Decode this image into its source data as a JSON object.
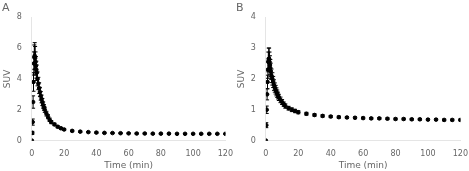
{
  "chart_data": [
    {
      "type": "scatter",
      "title": "A",
      "xlabel": "Time (min)",
      "ylabel": "SUV",
      "x": [
        0,
        0.25,
        0.5,
        0.75,
        1,
        1.25,
        1.5,
        1.75,
        2,
        2.25,
        2.5,
        2.75,
        3,
        3.5,
        4,
        4.5,
        5,
        5.5,
        6,
        6.5,
        7,
        7.5,
        8,
        9,
        10,
        11,
        12,
        14,
        16,
        18,
        20,
        25,
        30,
        35,
        40,
        45,
        50,
        55,
        60,
        65,
        70,
        75,
        80,
        85,
        90,
        95,
        100,
        105,
        110,
        115,
        120
      ],
      "values": [
        0,
        0.5,
        1.2,
        2.5,
        3.8,
        5.0,
        5.4,
        5.5,
        5.35,
        5.1,
        4.85,
        4.6,
        4.4,
        4.0,
        3.7,
        3.4,
        3.15,
        2.9,
        2.7,
        2.5,
        2.3,
        2.15,
        2.0,
        1.75,
        1.55,
        1.35,
        1.2,
        1.05,
        0.9,
        0.8,
        0.72,
        0.63,
        0.58,
        0.55,
        0.52,
        0.5,
        0.49,
        0.48,
        0.47,
        0.46,
        0.46,
        0.45,
        0.45,
        0.45,
        0.44,
        0.44,
        0.44,
        0.44,
        0.44,
        0.44,
        0.44
      ],
      "err": [
        0,
        0.1,
        0.2,
        0.4,
        0.6,
        0.75,
        0.8,
        0.85,
        0.75,
        0.65,
        0.6,
        0.55,
        0.5,
        0.45,
        0.4,
        0.35,
        0.3,
        0.28,
        0.25,
        0.23,
        0.2,
        0.18,
        0.17,
        0.15,
        0.13,
        0.11,
        0.1,
        0.08,
        0.07,
        0.06,
        0.055,
        0.05,
        0.045,
        0.04,
        0.04,
        0.035,
        0.03,
        0.03,
        0.03,
        0.03,
        0.03,
        0.03,
        0.03,
        0.03,
        0.03,
        0.03,
        0.03,
        0.03,
        0.03,
        0.03,
        0.03
      ],
      "xlim": [
        0,
        120
      ],
      "xticks": [
        0,
        20,
        40,
        60,
        80,
        100,
        120
      ],
      "ylim": [
        0,
        8
      ],
      "yticks": [
        0,
        2,
        4,
        6,
        8
      ],
      "color": "#000000",
      "marker": "o",
      "grid": false
    },
    {
      "type": "scatter",
      "title": "B",
      "xlabel": "Time (min)",
      "ylabel": "SUV",
      "x": [
        0,
        0.25,
        0.5,
        0.75,
        1,
        1.25,
        1.5,
        1.75,
        2,
        2.25,
        2.5,
        2.75,
        3,
        3.5,
        4,
        4.5,
        5,
        5.5,
        6,
        6.5,
        7,
        7.5,
        8,
        9,
        10,
        11,
        12,
        14,
        16,
        18,
        20,
        25,
        30,
        35,
        40,
        45,
        50,
        55,
        60,
        65,
        70,
        75,
        80,
        85,
        90,
        95,
        100,
        105,
        110,
        115,
        120
      ],
      "values": [
        0,
        0.5,
        1.0,
        1.5,
        1.9,
        2.3,
        2.55,
        2.65,
        2.65,
        2.55,
        2.45,
        2.35,
        2.25,
        2.1,
        2.0,
        1.9,
        1.8,
        1.72,
        1.65,
        1.58,
        1.52,
        1.46,
        1.4,
        1.32,
        1.25,
        1.18,
        1.12,
        1.05,
        1.0,
        0.96,
        0.92,
        0.87,
        0.83,
        0.8,
        0.78,
        0.76,
        0.75,
        0.74,
        0.73,
        0.72,
        0.72,
        0.71,
        0.7,
        0.7,
        0.69,
        0.69,
        0.68,
        0.68,
        0.67,
        0.67,
        0.67
      ],
      "err": [
        0,
        0.08,
        0.12,
        0.18,
        0.22,
        0.28,
        0.32,
        0.35,
        0.35,
        0.32,
        0.3,
        0.28,
        0.26,
        0.22,
        0.2,
        0.18,
        0.17,
        0.15,
        0.14,
        0.13,
        0.12,
        0.11,
        0.1,
        0.09,
        0.08,
        0.07,
        0.07,
        0.06,
        0.06,
        0.055,
        0.05,
        0.045,
        0.04,
        0.04,
        0.035,
        0.035,
        0.03,
        0.03,
        0.03,
        0.03,
        0.03,
        0.03,
        0.03,
        0.03,
        0.03,
        0.03,
        0.03,
        0.03,
        0.03,
        0.03,
        0.03
      ],
      "xlim": [
        0,
        120
      ],
      "xticks": [
        0,
        20,
        40,
        60,
        80,
        100,
        120
      ],
      "ylim": [
        0,
        4
      ],
      "yticks": [
        0,
        1,
        2,
        3,
        4
      ],
      "color": "#000000",
      "marker": "o",
      "grid": false
    }
  ]
}
